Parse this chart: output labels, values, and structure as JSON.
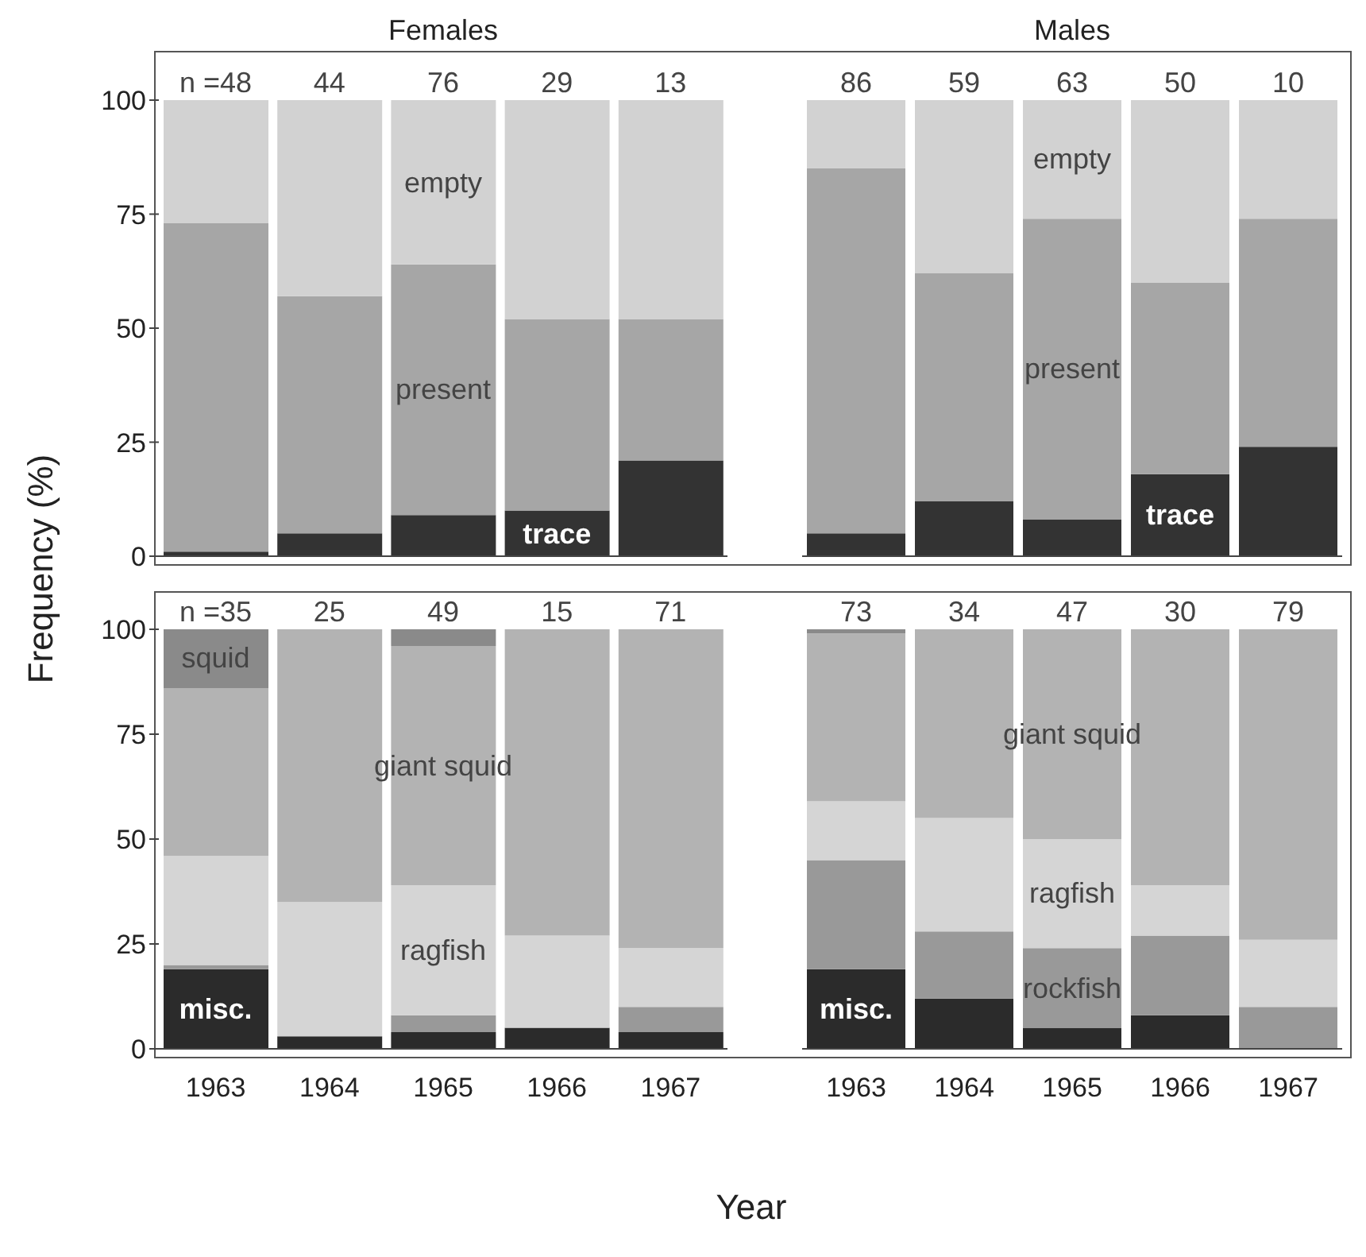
{
  "chart_data": [
    {
      "type": "bar",
      "title": "Females",
      "ylabel": "Frequency (%)",
      "stacked": true,
      "categories": [
        "1963",
        "1964",
        "1965",
        "1966",
        "1967"
      ],
      "ylim": [
        0,
        100
      ],
      "yticks": [
        0,
        25,
        50,
        75,
        100
      ],
      "tick_labels": "y",
      "series": [
        {
          "name": "trace",
          "color": "#333333",
          "values": [
            1,
            5,
            9,
            10,
            21
          ]
        },
        {
          "name": "present",
          "color": "#a6a6a6",
          "values": [
            72,
            52,
            55,
            42,
            31
          ]
        },
        {
          "name": "empty",
          "color": "#d2d2d2",
          "values": [
            27,
            43,
            36,
            48,
            48
          ]
        }
      ],
      "annotations": [
        "n =48",
        "44",
        "76",
        "29",
        "13"
      ]
    },
    {
      "type": "bar",
      "title": "Males",
      "stacked": true,
      "categories": [
        "1963",
        "1964",
        "1965",
        "1966",
        "1967"
      ],
      "ylim": [
        0,
        100
      ],
      "yticks": [
        0,
        25,
        50,
        75,
        100
      ],
      "tick_labels": false,
      "series": [
        {
          "name": "trace",
          "color": "#333333",
          "values": [
            5,
            12,
            8,
            18,
            24
          ]
        },
        {
          "name": "present",
          "color": "#a6a6a6",
          "values": [
            80,
            50,
            66,
            42,
            50
          ]
        },
        {
          "name": "empty",
          "color": "#d2d2d2",
          "values": [
            15,
            38,
            26,
            40,
            26
          ]
        }
      ],
      "annotations": [
        "86",
        "59",
        "63",
        "50",
        "10"
      ]
    },
    {
      "type": "bar",
      "xlabel": "Year",
      "stacked": true,
      "categories": [
        "1963",
        "1964",
        "1965",
        "1966",
        "1967"
      ],
      "ylim": [
        0,
        100
      ],
      "yticks": [
        0,
        25,
        50,
        75,
        100
      ],
      "series": [
        {
          "name": "misc.",
          "color": "#2b2b2b",
          "values": [
            19,
            3,
            4,
            5,
            4
          ]
        },
        {
          "color": "#999999",
          "values": [
            1,
            0,
            4,
            0,
            6
          ]
        },
        {
          "name": "ragfish",
          "color": "#d5d5d5",
          "values": [
            26,
            32,
            31,
            22,
            14
          ]
        },
        {
          "name": "giant squid",
          "color": "#b3b3b3",
          "values": [
            40,
            65,
            57,
            73,
            76
          ]
        },
        {
          "name": "squid",
          "color": "#8a8a8a",
          "values": [
            14,
            0,
            4,
            0,
            0
          ]
        }
      ],
      "annotations": [
        "n =35",
        "25",
        "49",
        "15",
        "71"
      ]
    },
    {
      "type": "bar",
      "stacked": true,
      "categories": [
        "1963",
        "1964",
        "1965",
        "1966",
        "1967"
      ],
      "ylim": [
        0,
        100
      ],
      "yticks": [
        0,
        25,
        50,
        75,
        100
      ],
      "tick_labels": "x",
      "series": [
        {
          "name": "misc.",
          "color": "#2b2b2b",
          "values": [
            19,
            12,
            5,
            8,
            0
          ]
        },
        {
          "name": "rockfish",
          "color": "#999999",
          "values": [
            26,
            16,
            19,
            19,
            10
          ]
        },
        {
          "name": "ragfish",
          "color": "#d5d5d5",
          "values": [
            14,
            27,
            26,
            12,
            16
          ]
        },
        {
          "name": "giant squid",
          "color": "#b3b3b3",
          "values": [
            40,
            45,
            50,
            61,
            74
          ]
        },
        {
          "color": "#8a8a8a",
          "values": [
            1,
            0,
            0,
            0,
            0
          ]
        }
      ],
      "annotations": [
        "73",
        "34",
        "47",
        "30",
        "79"
      ]
    }
  ]
}
